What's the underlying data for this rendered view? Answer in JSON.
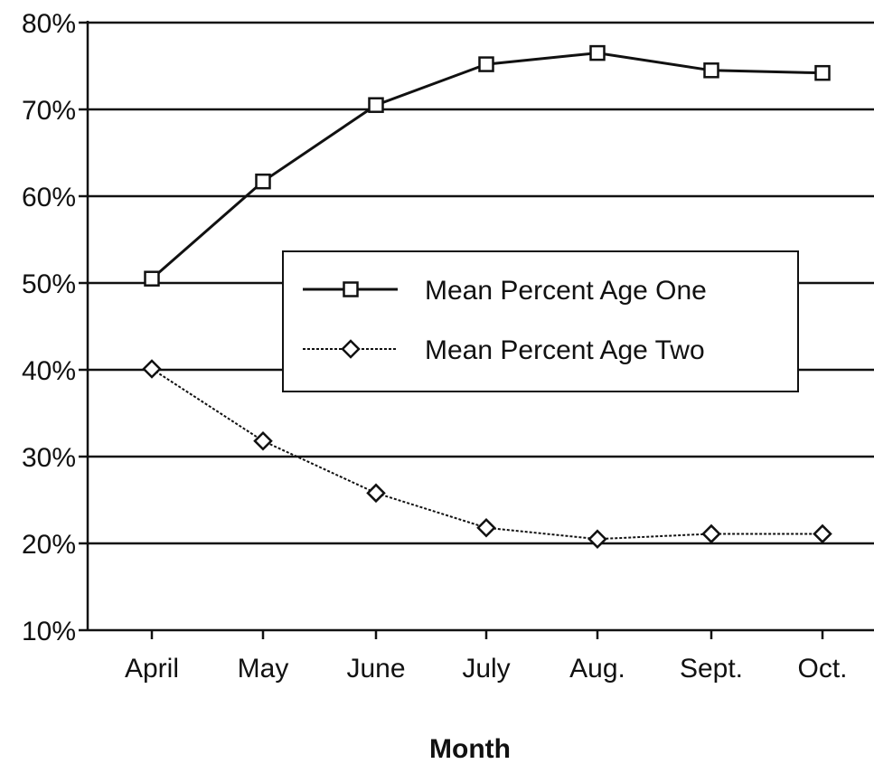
{
  "chart_data": {
    "type": "line",
    "title": "",
    "xlabel": "Month",
    "ylabel": "",
    "categories": [
      "April",
      "May",
      "June",
      "July",
      "Aug.",
      "Sept.",
      "Oct."
    ],
    "ylim": [
      10,
      80
    ],
    "y_ticks": [
      10,
      20,
      30,
      40,
      50,
      60,
      70,
      80
    ],
    "y_tick_labels": [
      "10%",
      "20%",
      "30%",
      "40%",
      "50%",
      "60%",
      "70%",
      "80%"
    ],
    "grid": true,
    "legend_placement": "center-right",
    "series": [
      {
        "name": "Mean Percent Age One",
        "values": [
          50.5,
          61.7,
          70.5,
          75.2,
          76.5,
          74.5,
          74.2
        ],
        "marker": "square",
        "line_style": "solid"
      },
      {
        "name": "Mean Percent Age Two",
        "values": [
          40.1,
          31.8,
          25.8,
          21.8,
          20.5,
          21.1,
          21.1
        ],
        "marker": "diamond",
        "line_style": "dotted"
      }
    ],
    "colors": {
      "line": "#111111",
      "grid": "#111111",
      "background": "#ffffff"
    }
  }
}
